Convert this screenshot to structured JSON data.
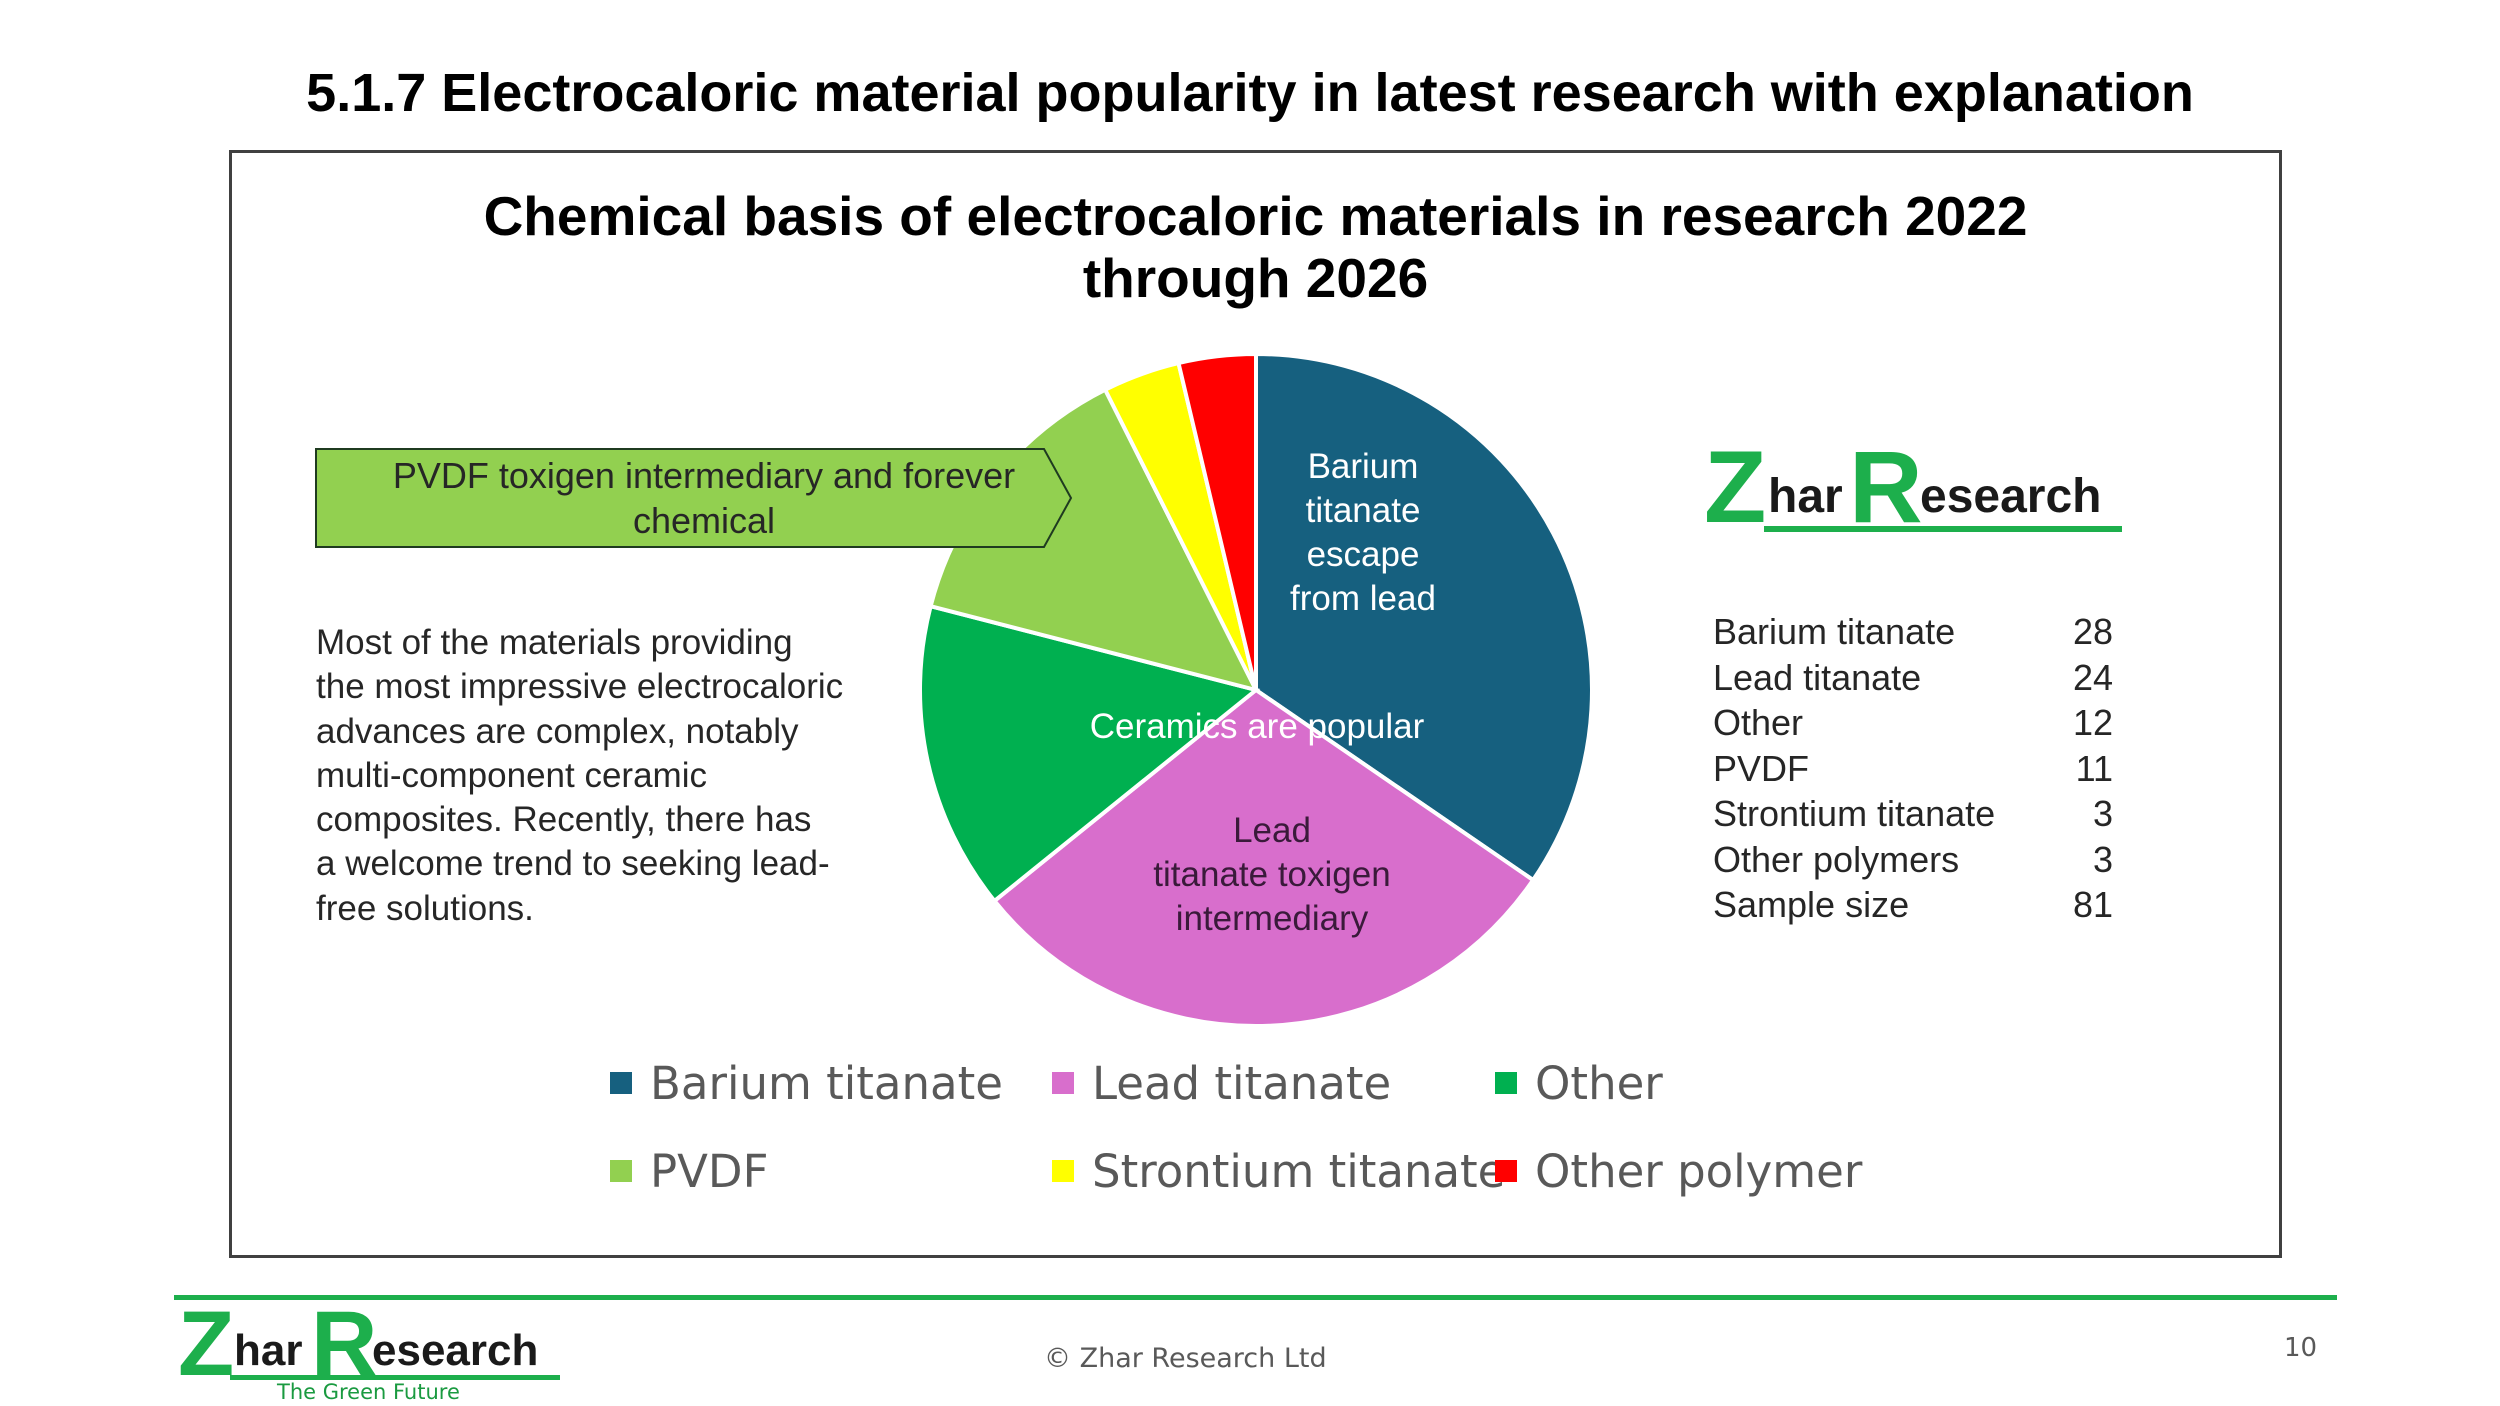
{
  "slide": {
    "title": "5.1.7 Electrocaloric material popularity in latest research with explanation",
    "copyright": "© Zhar Research Ltd",
    "page_number": "10"
  },
  "logo": {
    "z": "Z",
    "har": "har",
    "r": "R",
    "esearch": "esearch",
    "tagline": "The Green Future",
    "color": "#1daf4c"
  },
  "callout": {
    "text_line1": "PVDF toxigen intermediary and forever",
    "text_line2": "chemical",
    "fill": "#92d050"
  },
  "explanation": {
    "lines": [
      "Most of the materials providing",
      "the most impressive electrocaloric",
      "advances are complex, notably",
      "multi-component ceramic",
      "composites. Recently, there has",
      "a welcome trend to seeking lead-",
      "free solutions."
    ]
  },
  "counts_table": {
    "rows": [
      {
        "name": "Barium titanate",
        "value": "28"
      },
      {
        "name": "Lead titanate",
        "value": "24"
      },
      {
        "name": "Other",
        "value": "12"
      },
      {
        "name": "PVDF",
        "value": "11"
      },
      {
        "name": "Strontium titanate",
        "value": "3"
      },
      {
        "name": "Other polymers",
        "value": "3"
      },
      {
        "name": "Sample size",
        "value": "81"
      }
    ]
  },
  "chart_data": {
    "type": "pie",
    "title_line1": "Chemical basis of electrocaloric materials in research 2022",
    "title_line2": "through 2026",
    "start_angle_deg": 0,
    "direction": "clockwise",
    "slices": [
      {
        "name": "Barium titanate",
        "value": 28,
        "color": "#16607f"
      },
      {
        "name": "Lead titanate",
        "value": 24,
        "color": "#d86ecc"
      },
      {
        "name": "Other",
        "value": 12,
        "color": "#00b050"
      },
      {
        "name": "PVDF",
        "value": 11,
        "color": "#92d050"
      },
      {
        "name": "Strontium titanate",
        "value": 3,
        "color": "#ffff00"
      },
      {
        "name": "Other polymer",
        "value": 3,
        "color": "#ff0000"
      }
    ],
    "annotations": {
      "barium_lines": [
        "Barium",
        "titanate",
        "escape",
        "from lead"
      ],
      "lead_lines": [
        "Lead",
        "titanate toxigen",
        "intermediary"
      ],
      "ceramics": "Ceramics are popular"
    },
    "legend": {
      "placement": "bottom",
      "items": [
        "Barium titanate",
        "Lead titanate",
        "Other",
        "PVDF",
        "Strontium titanate",
        "Other polymer"
      ]
    }
  }
}
